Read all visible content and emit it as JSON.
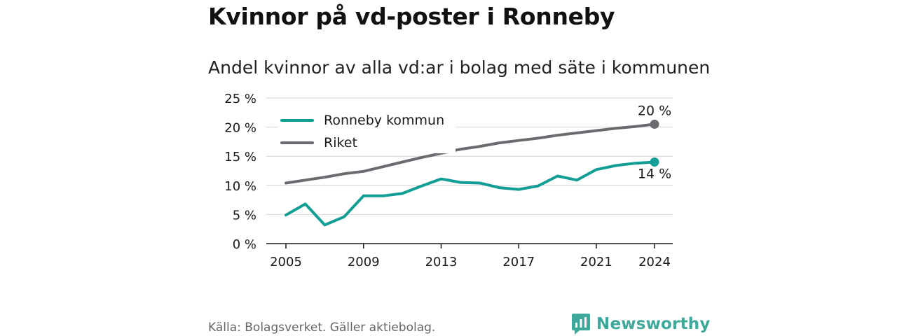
{
  "title": "Kvinnor på vd-poster i Ronneby",
  "subtitle": "Andel kvinnor av alla vd:ar i bolag med säte i kommunen",
  "source": "Källa: Bolagsverket. Gäller aktiebolag.",
  "brand": {
    "name": "Newsworthy",
    "icon": "newsworthy-logo-icon",
    "color": "#3ea89a"
  },
  "chart_data": {
    "type": "line",
    "x": [
      2005,
      2006,
      2007,
      2008,
      2009,
      2010,
      2011,
      2012,
      2013,
      2014,
      2015,
      2016,
      2017,
      2018,
      2019,
      2020,
      2021,
      2022,
      2023,
      2024
    ],
    "xticks": [
      2005,
      2009,
      2013,
      2017,
      2021,
      2024
    ],
    "xtick_labels": [
      "2005",
      "2009",
      "2013",
      "2017",
      "2021",
      "2024"
    ],
    "xlim": [
      2005,
      2024
    ],
    "ylim": [
      0,
      25
    ],
    "yticks": [
      0,
      5,
      10,
      15,
      20,
      25
    ],
    "ytick_labels": [
      "0 %",
      "5 %",
      "10 %",
      "15 %",
      "20 %",
      "25 %"
    ],
    "grid": true,
    "legend": "top-left",
    "series": [
      {
        "name": "Ronneby kommun",
        "color": "#129e94",
        "values": [
          4.9,
          6.8,
          3.2,
          4.6,
          8.2,
          8.2,
          8.6,
          9.9,
          11.1,
          10.5,
          10.4,
          9.6,
          9.3,
          9.9,
          11.6,
          10.9,
          12.7,
          13.4,
          13.8,
          14.0
        ],
        "end_label": "14 %"
      },
      {
        "name": "Riket",
        "color": "#6b6a70",
        "values": [
          10.4,
          10.9,
          11.4,
          12.0,
          12.4,
          13.2,
          14.0,
          14.8,
          15.5,
          16.2,
          16.7,
          17.3,
          17.7,
          18.1,
          18.6,
          19.0,
          19.4,
          19.8,
          20.1,
          20.5
        ],
        "end_label": "20 %"
      }
    ]
  }
}
